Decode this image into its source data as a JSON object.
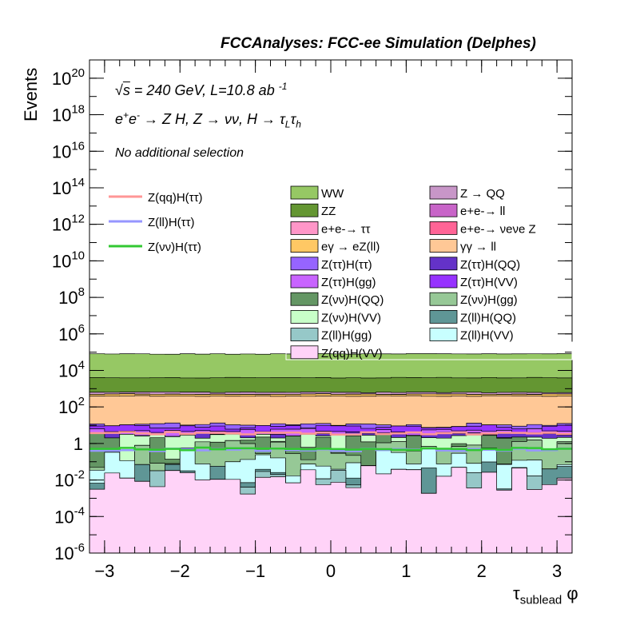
{
  "header": {
    "title": "FCCAnalyses: FCC-ee Simulation (Delphes)"
  },
  "annotations": {
    "energy_line": "√s = 240 GeV, L=10.8 ab -1",
    "process_line": "e+e- → Z H, Z → νν, H → τLτh",
    "selection_line": "No additional selection"
  },
  "chart_data": {
    "type": "area",
    "title": "FCCAnalyses: FCC-ee Simulation (Delphes)",
    "xlabel": "τsublead φ",
    "ylabel": "Events",
    "xlim": [
      -3.2,
      3.2
    ],
    "ylim": [
      1e-06,
      1e+21
    ],
    "log_y": true,
    "grid": false,
    "legend_position": "top (two columns) + left (signal lines)",
    "x_ticks": [
      "−3",
      "−2",
      "−1",
      "0",
      "1",
      "2",
      "3"
    ],
    "y_ticks": [
      "10-6",
      "10-4",
      "10-2",
      "1",
      "102",
      "104",
      "106",
      "108",
      "1010",
      "1012",
      "1014",
      "1016",
      "1018",
      "1020"
    ],
    "bins": 32,
    "stack_order": "bottom to top",
    "stacked_series": [
      {
        "name": "Z(qq)H(VV)",
        "color": "#ffd3f8"
      },
      {
        "name": "Z(ll)H(gg)",
        "color": "#96c8c8"
      },
      {
        "name": "Z(ll)H(QQ)",
        "color": "#5f9696"
      },
      {
        "name": "Z(ll)H(VV)",
        "color": "#c8ffff"
      },
      {
        "name": "Z(νν)H(gg)",
        "color": "#96c896"
      },
      {
        "name": "Z(νν)H(QQ)",
        "color": "#649664"
      },
      {
        "name": "Z(νν)H(VV)",
        "color": "#c8ffc8"
      },
      {
        "name": "Z(ττ)H(QQ)",
        "color": "#6432c8"
      },
      {
        "name": "Z(ττ)H(gg)",
        "color": "#c864ff"
      },
      {
        "name": "Z(ττ)H(VV)",
        "color": "#9632ff"
      },
      {
        "name": "Z(ττ)H(ττ)",
        "color": "#9664ff"
      },
      {
        "name": "γγ → ll",
        "color": "#ffc896"
      },
      {
        "name": "eγ → eZ(ll)",
        "color": "#ffc864"
      },
      {
        "name": "e+e-→ νeνe Z",
        "color": "#ff6496"
      },
      {
        "name": "e+e-→ ττ",
        "color": "#ff96c8"
      },
      {
        "name": "e+e-→ ll",
        "color": "#c864c8"
      },
      {
        "name": "Z → QQ",
        "color": "#c896c8"
      },
      {
        "name": "ZZ",
        "color": "#649632"
      },
      {
        "name": "WW",
        "color": "#96c864"
      }
    ],
    "stack_levels_log10_approx": {
      "Z(qq)H(VV)": -2.0,
      "Z(ll)H(gg)": -2.2,
      "Z(ll)H(QQ)": -1.8,
      "Z(ll)H(VV)": -1.0,
      "Z(νν)H(gg)": -0.6,
      "Z(νν)H(QQ)": -0.2,
      "Z(νν)H(VV)": 0.4,
      "Z(ττ)H(QQ)": 0.5,
      "Z(ττ)H(gg)": 0.7,
      "Z(ττ)H(VV)": 0.9,
      "Z(ττ)H(ττ)": 1.0,
      "γγ → ll": 2.6,
      "eγ → eZ(ll)": 2.7,
      "e+e-→ νeνe Z": 1.2,
      "e+e-→ ττ": 1.6,
      "e+e-→ ll": 2.4,
      "Z → QQ": 2.8,
      "ZZ": 3.6,
      "WW": 4.9
    },
    "signal_lines": [
      {
        "name": "Z(qq)H(ττ)",
        "color": "#ff9696",
        "log10_level": 0.55
      },
      {
        "name": "Z(ll)H(ττ)",
        "color": "#9696ff",
        "log10_level": -0.35
      },
      {
        "name": "Z(νν)H(ττ)",
        "color": "#32c832",
        "log10_level": -0.3
      }
    ]
  }
}
